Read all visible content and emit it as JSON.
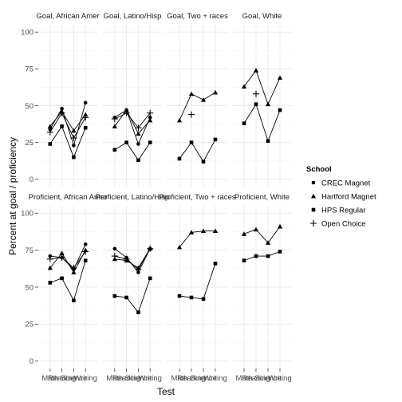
{
  "chart_data": {
    "type": "line",
    "xlabel": "Test",
    "ylabel": "Percent at goal / proficiency",
    "x": [
      "Math",
      "Reading",
      "Science",
      "Writing"
    ],
    "y_ticks": [
      0,
      25,
      50,
      75,
      100
    ],
    "ylim": [
      -5,
      105
    ],
    "grid": true,
    "legend": {
      "title": "School",
      "position": "right",
      "entries": [
        {
          "name": "CREC Magnet",
          "shape": "circle"
        },
        {
          "name": "Hartford Magnet",
          "shape": "triangle"
        },
        {
          "name": "HPS Regular",
          "shape": "square"
        },
        {
          "name": "Open Choice",
          "shape": "plus"
        }
      ]
    },
    "panels": [
      {
        "title": "Goal, African Amer",
        "series": [
          {
            "name": "CREC Magnet",
            "values": [
              34,
              48,
              23,
              52
            ]
          },
          {
            "name": "Hartford Magnet",
            "values": [
              36,
              46,
              33,
              44
            ]
          },
          {
            "name": "HPS Regular",
            "values": [
              24,
              36,
              15,
              35
            ]
          },
          {
            "name": "Open Choice",
            "values": [
              32,
              45,
              28,
              42
            ]
          }
        ]
      },
      {
        "title": "Goal, Latino/Hisp",
        "series": [
          {
            "name": "CREC Magnet",
            "values": [
              42,
              47,
              24,
              42
            ]
          },
          {
            "name": "Hartford Magnet",
            "values": [
              36,
              47,
              31,
              40
            ]
          },
          {
            "name": "HPS Regular",
            "values": [
              20,
              25,
              13,
              25
            ]
          },
          {
            "name": "Open Choice",
            "values": [
              41,
              45,
              35,
              45
            ]
          }
        ]
      },
      {
        "title": "Goal, Two + races",
        "series": [
          {
            "name": "CREC Magnet",
            "values": [
              null,
              null,
              null,
              null
            ]
          },
          {
            "name": "Hartford Magnet",
            "values": [
              40,
              58,
              54,
              59
            ]
          },
          {
            "name": "HPS Regular",
            "values": [
              14,
              25,
              12,
              27
            ]
          },
          {
            "name": "Open Choice",
            "values": [
              null,
              44,
              null,
              null
            ]
          }
        ]
      },
      {
        "title": "Goal, White",
        "series": [
          {
            "name": "CREC Magnet",
            "values": [
              null,
              null,
              null,
              null
            ]
          },
          {
            "name": "Hartford Magnet",
            "values": [
              63,
              74,
              51,
              69
            ]
          },
          {
            "name": "HPS Regular",
            "values": [
              38,
              51,
              26,
              47
            ]
          },
          {
            "name": "Open Choice",
            "values": [
              null,
              58,
              null,
              null
            ]
          }
        ]
      },
      {
        "title": "Proficient, African Amer",
        "series": [
          {
            "name": "CREC Magnet",
            "values": [
              71,
              70,
              62,
              79
            ]
          },
          {
            "name": "Hartford Magnet",
            "values": [
              63,
              73,
              60,
              75
            ]
          },
          {
            "name": "HPS Regular",
            "values": [
              53,
              56,
              41,
              68
            ]
          },
          {
            "name": "Open Choice",
            "values": [
              69,
              70,
              63,
              74
            ]
          }
        ]
      },
      {
        "title": "Proficient, Latino/Hisp",
        "series": [
          {
            "name": "CREC Magnet",
            "values": [
              76,
              70,
              60,
              76
            ]
          },
          {
            "name": "Hartford Magnet",
            "values": [
              69,
              68,
              63,
              76
            ]
          },
          {
            "name": "HPS Regular",
            "values": [
              44,
              43,
              33,
              56
            ]
          },
          {
            "name": "Open Choice",
            "values": [
              71,
              69,
              62,
              76
            ]
          }
        ]
      },
      {
        "title": "Proficient, Two + races",
        "series": [
          {
            "name": "CREC Magnet",
            "values": [
              null,
              null,
              null,
              null
            ]
          },
          {
            "name": "Hartford Magnet",
            "values": [
              77,
              87,
              88,
              88
            ]
          },
          {
            "name": "HPS Regular",
            "values": [
              44,
              43,
              42,
              66
            ]
          },
          {
            "name": "Open Choice",
            "values": [
              null,
              null,
              null,
              null
            ]
          }
        ]
      },
      {
        "title": "Proficient, White",
        "series": [
          {
            "name": "CREC Magnet",
            "values": [
              null,
              null,
              null,
              null
            ]
          },
          {
            "name": "Hartford Magnet",
            "values": [
              86,
              89,
              80,
              91
            ]
          },
          {
            "name": "HPS Regular",
            "values": [
              68,
              71,
              71,
              74
            ]
          },
          {
            "name": "Open Choice",
            "values": [
              null,
              null,
              null,
              null
            ]
          }
        ]
      }
    ]
  },
  "colors": {
    "panel_bg": "#ffffff",
    "grid_major": "#ebebeb",
    "grid_minor": "#f5f5f5",
    "line": "#000000",
    "tick_text": "#4d4d4d"
  }
}
